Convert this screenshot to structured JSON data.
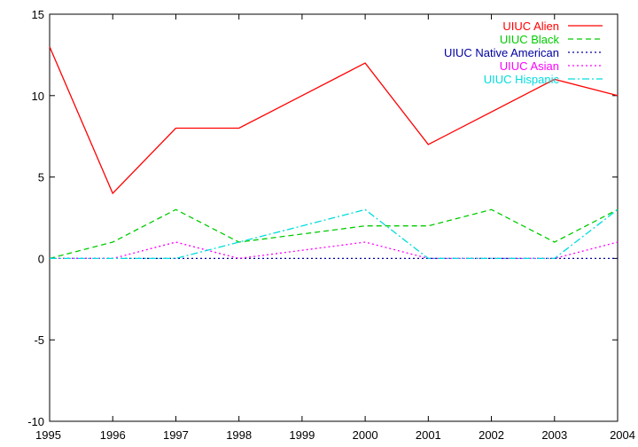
{
  "chart_data": {
    "type": "line",
    "title": "",
    "xlabel": "",
    "ylabel": "",
    "x": [
      1995,
      1996,
      1997,
      1998,
      1999,
      2000,
      2001,
      2002,
      2003,
      2004
    ],
    "xlim": [
      1995,
      2004
    ],
    "ylim": [
      -10,
      15
    ],
    "xticks": [
      "1995",
      "1996",
      "1997",
      "1998",
      "1999",
      "2000",
      "2001",
      "2002",
      "2003",
      "2004"
    ],
    "yticks": [
      "-10",
      "-5",
      "0",
      "5",
      "10",
      "15"
    ],
    "grid": false,
    "legend_position": "top-right",
    "series": [
      {
        "name": "UIUC Alien",
        "color": "#ff0000",
        "dash": "solid",
        "values": [
          13,
          4,
          8,
          8,
          10,
          12,
          7,
          9,
          11,
          10
        ]
      },
      {
        "name": "UIUC Black",
        "color": "#00cc00",
        "dash": "dashed",
        "values": [
          0,
          1,
          3,
          1,
          1.5,
          2,
          2,
          3,
          1,
          3
        ]
      },
      {
        "name": "UIUC Native American",
        "color": "#0000a0",
        "dash": "dotted",
        "values": [
          0,
          0,
          0,
          0,
          0,
          0,
          0,
          0,
          0,
          0
        ]
      },
      {
        "name": "UIUC Asian",
        "color": "#ff00ff",
        "dash": "dotted",
        "values": [
          0,
          0,
          1,
          0,
          0.5,
          1,
          0,
          0,
          0,
          1
        ]
      },
      {
        "name": "UIUC Hispanic",
        "color": "#00dddd",
        "dash": "dashdot",
        "values": [
          0,
          0,
          0,
          1,
          2,
          3,
          0,
          0,
          0,
          3
        ]
      }
    ]
  }
}
